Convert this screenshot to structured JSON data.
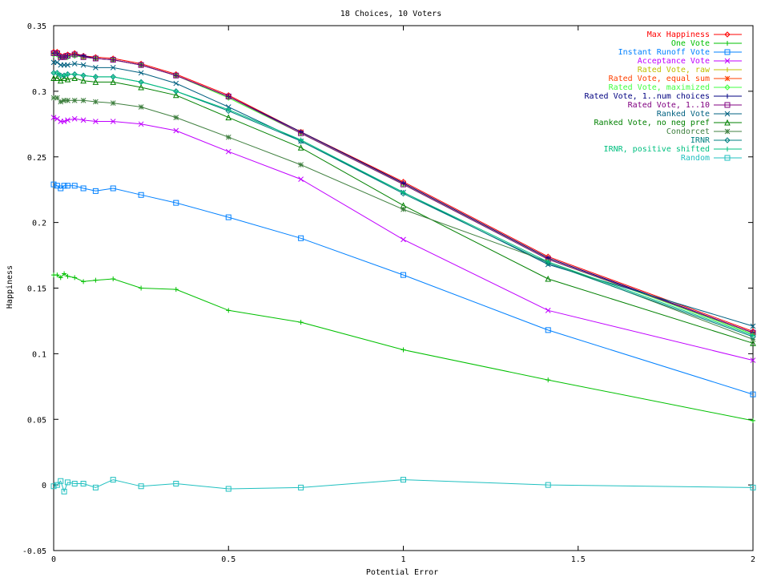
{
  "chart_data": {
    "type": "line",
    "title": "18 Choices, 10 Voters",
    "xlabel": "Potential Error",
    "ylabel": "Happiness",
    "xlim": [
      0,
      2
    ],
    "ylim": [
      -0.05,
      0.35
    ],
    "xticks": [
      0,
      0.5,
      1,
      1.5,
      2
    ],
    "xtick_labels": [
      "0",
      "0.5",
      "1",
      "1.5",
      "2"
    ],
    "yticks": [
      -0.05,
      0,
      0.05,
      0.1,
      0.15,
      0.2,
      0.25,
      0.3,
      0.35
    ],
    "ytick_labels": [
      "-0.05",
      "0",
      "0.05",
      "0.1",
      "0.15",
      "0.2",
      "0.25",
      "0.3",
      "0.35"
    ],
    "grid": false,
    "legend_position": "top-right",
    "x": [
      0,
      0.01,
      0.02,
      0.03,
      0.04,
      0.06,
      0.085,
      0.12,
      0.17,
      0.25,
      0.35,
      0.5,
      0.707,
      1.0,
      1.414,
      2.0
    ],
    "series": [
      {
        "name": "Max Happiness",
        "color": "#ff0000",
        "marker": "diamond",
        "values": [
          0.33,
          0.33,
          0.327,
          0.327,
          0.328,
          0.329,
          0.327,
          0.326,
          0.325,
          0.321,
          0.313,
          0.297,
          0.269,
          0.231,
          0.174,
          0.117
        ]
      },
      {
        "name": "One Vote",
        "color": "#00c000",
        "marker": "plus",
        "values": [
          0.16,
          0.16,
          0.158,
          0.161,
          0.159,
          0.158,
          0.155,
          0.156,
          0.157,
          0.15,
          0.149,
          0.133,
          0.124,
          0.103,
          0.08,
          0.049
        ]
      },
      {
        "name": "Instant Runoff Vote",
        "color": "#0080ff",
        "marker": "square",
        "values": [
          0.229,
          0.228,
          0.226,
          0.228,
          0.228,
          0.228,
          0.226,
          0.224,
          0.226,
          0.221,
          0.215,
          0.204,
          0.188,
          0.16,
          0.118,
          0.069
        ]
      },
      {
        "name": "Acceptance Vote",
        "color": "#c000ff",
        "marker": "x",
        "values": [
          0.28,
          0.279,
          0.277,
          0.277,
          0.278,
          0.279,
          0.278,
          0.277,
          0.277,
          0.275,
          0.27,
          0.254,
          0.233,
          0.187,
          0.133,
          0.095
        ]
      },
      {
        "name": "Rated Vote, raw",
        "color": "#c0c000",
        "marker": "plus",
        "values": [
          0.328,
          0.328,
          0.326,
          0.326,
          0.327,
          0.328,
          0.326,
          0.325,
          0.324,
          0.32,
          0.312,
          0.295,
          0.268,
          0.229,
          0.172,
          0.115
        ]
      },
      {
        "name": "Rated Vote, equal sum",
        "color": "#ff4000",
        "marker": "star",
        "values": [
          0.329,
          0.329,
          0.326,
          0.326,
          0.327,
          0.328,
          0.326,
          0.325,
          0.324,
          0.32,
          0.312,
          0.296,
          0.269,
          0.23,
          0.173,
          0.116
        ]
      },
      {
        "name": "Rated Vote, maximized",
        "color": "#40ff40",
        "marker": "diamond",
        "values": [
          0.328,
          0.328,
          0.326,
          0.326,
          0.326,
          0.327,
          0.326,
          0.325,
          0.324,
          0.32,
          0.312,
          0.295,
          0.268,
          0.229,
          0.172,
          0.115
        ]
      },
      {
        "name": "Rated Vote, 1..num choices",
        "color": "#000080",
        "marker": "plus",
        "values": [
          0.329,
          0.329,
          0.326,
          0.326,
          0.327,
          0.328,
          0.327,
          0.325,
          0.324,
          0.32,
          0.312,
          0.296,
          0.269,
          0.23,
          0.173,
          0.116
        ]
      },
      {
        "name": "Rated Vote, 1..10",
        "color": "#800080",
        "marker": "square",
        "values": [
          0.329,
          0.329,
          0.326,
          0.326,
          0.327,
          0.328,
          0.326,
          0.325,
          0.324,
          0.32,
          0.312,
          0.296,
          0.268,
          0.229,
          0.172,
          0.116
        ]
      },
      {
        "name": "Ranked Vote",
        "color": "#006080",
        "marker": "x",
        "values": [
          0.322,
          0.322,
          0.32,
          0.32,
          0.32,
          0.321,
          0.32,
          0.318,
          0.318,
          0.314,
          0.306,
          0.288,
          0.262,
          0.223,
          0.168,
          0.121
        ]
      },
      {
        "name": "Ranked Vote, no neg pref",
        "color": "#008000",
        "marker": "triangle",
        "values": [
          0.31,
          0.31,
          0.308,
          0.31,
          0.309,
          0.31,
          0.308,
          0.307,
          0.307,
          0.303,
          0.297,
          0.28,
          0.257,
          0.213,
          0.157,
          0.108
        ]
      },
      {
        "name": "Condorcet",
        "color": "#408040",
        "marker": "star",
        "values": [
          0.295,
          0.295,
          0.292,
          0.293,
          0.293,
          0.293,
          0.293,
          0.292,
          0.291,
          0.288,
          0.28,
          0.265,
          0.244,
          0.21,
          0.17,
          0.111
        ]
      },
      {
        "name": "IRNR",
        "color": "#008080",
        "marker": "diamond",
        "values": [
          0.314,
          0.314,
          0.312,
          0.312,
          0.313,
          0.313,
          0.312,
          0.311,
          0.311,
          0.307,
          0.3,
          0.285,
          0.262,
          0.222,
          0.169,
          0.113
        ]
      },
      {
        "name": "IRNR, positive shifted",
        "color": "#00c080",
        "marker": "plus",
        "values": [
          0.314,
          0.314,
          0.312,
          0.312,
          0.313,
          0.313,
          0.312,
          0.311,
          0.311,
          0.307,
          0.3,
          0.286,
          0.263,
          0.223,
          0.17,
          0.114
        ]
      },
      {
        "name": "Random",
        "color": "#20c0c0",
        "marker": "square",
        "values": [
          -0.001,
          0.0,
          0.003,
          -0.005,
          0.002,
          0.001,
          0.001,
          -0.002,
          0.004,
          -0.001,
          0.001,
          -0.003,
          -0.002,
          0.004,
          0.0,
          -0.002
        ]
      }
    ]
  }
}
